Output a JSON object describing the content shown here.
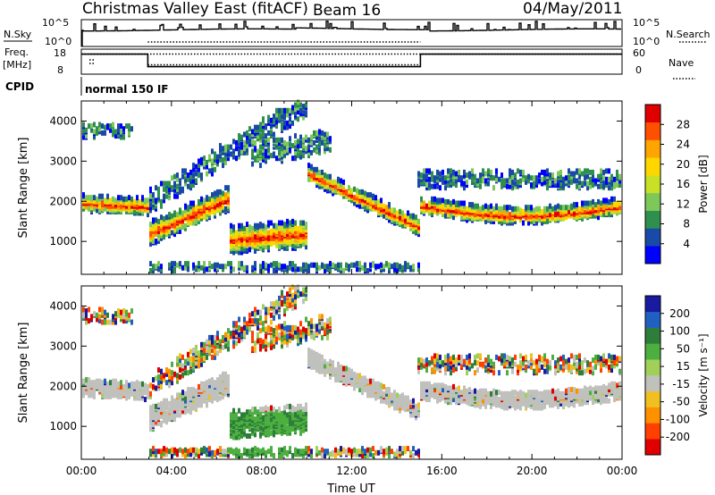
{
  "header": {
    "station": "Christmas Valley East (fitACF)",
    "beam": "Beam 16",
    "date": "04/May/2011"
  },
  "top_panels": {
    "nsky_label": "N.Sky",
    "nsky_ticks": [
      "10^5",
      "10^0"
    ],
    "nsearch_label": "N.Search",
    "nsearch_ticks": [
      "10^5",
      "10^0"
    ],
    "freq_label": "Freq.",
    "freq_unit": "[MHz]",
    "freq_ticks": [
      "18",
      "8"
    ],
    "nave_label": "Nave",
    "nave_ticks": [
      "60",
      "0"
    ],
    "cpid_label": "CPID",
    "cpid_value": "normal 150 IF"
  },
  "chart_data": [
    {
      "type": "line",
      "panel": "N.Sky / N.Search",
      "ylabel_left": "N.Sky",
      "ylabel_right": "N.Search",
      "xlim": [
        "00:00",
        "24:00"
      ],
      "ylim_log10": [
        0,
        5
      ]
    },
    {
      "type": "line",
      "panel": "Frequency / Nave",
      "ylabel_left": "Freq. [MHz]",
      "ylabel_right": "Nave",
      "ylim_left": [
        8,
        18
      ],
      "ylim_right": [
        0,
        60
      ],
      "series": [
        {
          "x_hours": [
            0,
            2.95,
            2.95,
            15.05,
            15.05,
            24
          ],
          "values": [
            16,
            16,
            11,
            11,
            16,
            16
          ]
        }
      ]
    },
    {
      "type": "heatmap",
      "panel": "Power",
      "xlabel": "",
      "ylabel": "Slant Range [km]",
      "xlim": [
        "00:00",
        "24:00"
      ],
      "ylim": [
        180,
        4500
      ],
      "y_ticks": [
        "1000",
        "2000",
        "3000",
        "4000"
      ],
      "colorbar_label": "Power [dB]",
      "colorbar_ticks": [
        "4",
        "8",
        "12",
        "16",
        "20",
        "24",
        "28"
      ],
      "colorbar_range": [
        0,
        30
      ],
      "colors": [
        "#0000ff",
        "#1a4aa8",
        "#2f8f4f",
        "#7ec85a",
        "#c8e025",
        "#ffd700",
        "#ffa500",
        "#ff5000",
        "#e00000"
      ]
    },
    {
      "type": "heatmap",
      "panel": "Velocity",
      "xlabel": "Time UT",
      "ylabel": "Slant Range [km]",
      "xlim": [
        "00:00",
        "24:00"
      ],
      "ylim": [
        180,
        4500
      ],
      "y_ticks": [
        "1000",
        "2000",
        "3000",
        "4000"
      ],
      "x_ticks": [
        "00:00",
        "04:00",
        "08:00",
        "12:00",
        "16:00",
        "20:00",
        "00:00"
      ],
      "colorbar_label": "Velocity [m s⁻¹]",
      "colorbar_ticks": [
        "200",
        "100",
        "50",
        "15",
        "-15",
        "-50",
        "-100",
        "-200"
      ],
      "colorbar_range": [
        -250,
        250
      ],
      "ground_scatter_color": "#c0c0bc",
      "colors": [
        "#1a1aa0",
        "#2060c0",
        "#2e7d3a",
        "#4caf3f",
        "#a0d05a",
        "#c0c0bc",
        "#f0c020",
        "#ff9000",
        "#ff4000",
        "#e00000"
      ]
    }
  ]
}
